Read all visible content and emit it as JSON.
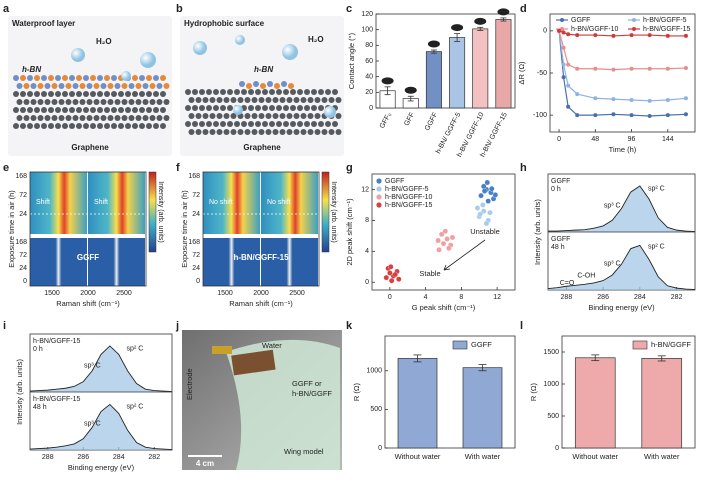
{
  "panel_labels": [
    "a",
    "b",
    "c",
    "d",
    "e",
    "f",
    "g",
    "h",
    "i",
    "j",
    "k",
    "l"
  ],
  "illustrations": [
    {
      "title": "Waterproof layer",
      "water": "H₂O",
      "layer": "h-BN",
      "substrate": "Graphene"
    },
    {
      "title": "Hydrophobic surface",
      "water": "H₂O",
      "layer": "h-BN",
      "substrate": "Graphene"
    }
  ],
  "raman": [
    {
      "ylabel": "Exposure time in air (h)",
      "xlabel": "Raman shift (cm⁻¹)",
      "colorbar_label": "Intensity (arb. units)",
      "xticks": [
        "1500",
        "2000",
        "2500"
      ],
      "yticks_top": [
        "168",
        "72",
        "24"
      ],
      "yticks_bottom": [
        "168",
        "72",
        "24",
        "0"
      ],
      "top_labels": [
        "Shift",
        "Shift"
      ],
      "sample": "GGFF"
    },
    {
      "ylabel": "Exposure time in air (h)",
      "xlabel": "Raman shift (cm⁻¹)",
      "colorbar_label": "Intensity (arb. units)",
      "xticks": [
        "1500",
        "2000",
        "2500"
      ],
      "yticks_top": [
        "168",
        "72",
        "24"
      ],
      "yticks_bottom": [
        "168",
        "72",
        "24",
        "0"
      ],
      "top_labels": [
        "No shift",
        "No shift"
      ],
      "sample": "h-BN/GGFF-15"
    }
  ],
  "photo": {
    "labels": [
      "Water",
      "Electrode",
      "GGFF or",
      "h-BN/GGFF",
      "Wing model"
    ],
    "scale_bar": "4 cm"
  },
  "chart_data": [
    {
      "type": "bar",
      "ylabel": "Contact angle (°)",
      "categories": [
        "GFF₀",
        "GFF",
        "GGFF",
        "h-BN/ GGFF-5",
        "h-BN/ GGFF-10",
        "h-BN/ GGFF-15"
      ],
      "values": [
        22,
        12,
        72,
        90,
        101,
        113
      ],
      "errors": [
        5,
        3,
        2,
        5,
        2,
        2
      ],
      "colors": [
        "#ffffff",
        "#ffffff",
        "#7290c3",
        "#a9c4e4",
        "#f3c1c1",
        "#e8a8a8"
      ],
      "ylim": [
        0,
        120
      ],
      "yticks": [
        0,
        20,
        40,
        60,
        80,
        100,
        120
      ]
    },
    {
      "type": "line",
      "xlabel": "Time (h)",
      "ylabel": "ΔR (Ω)",
      "x": [
        0,
        6,
        12,
        24,
        48,
        72,
        96,
        120,
        144,
        168
      ],
      "series": [
        {
          "name": "GGFF",
          "color": "#4a6fad",
          "values": [
            0,
            -55,
            -90,
            -100,
            -100,
            -99,
            -100,
            -101,
            -100,
            -99
          ]
        },
        {
          "name": "h-BN/GGFF-5",
          "color": "#8fb3e0",
          "values": [
            0,
            -40,
            -65,
            -75,
            -80,
            -81,
            -82,
            -83,
            -82,
            -80
          ]
        },
        {
          "name": "h-BN/GGFF-10",
          "color": "#e88c8c",
          "values": [
            0,
            -20,
            -40,
            -45,
            -45,
            -46,
            -45,
            -45,
            -45,
            -44
          ]
        },
        {
          "name": "h-BN/GGFF-15",
          "color": "#d03a3a",
          "values": [
            0,
            -2,
            -4,
            -5,
            -5,
            -6,
            -5,
            -5,
            -6,
            -6
          ]
        }
      ],
      "xlim": [
        -12,
        180
      ],
      "xticks": [
        0,
        48,
        96,
        144
      ],
      "ylim": [
        -120,
        20
      ],
      "yticks": [
        -100,
        -50,
        0
      ]
    },
    {
      "type": "scatter",
      "xlabel": "G peak shift (cm⁻¹)",
      "ylabel": "2D peak shift (cm⁻¹)",
      "annotations": [
        "Unstable",
        "Stable"
      ],
      "series": [
        {
          "name": "GGFF",
          "color": "#4a7fc8",
          "x": [
            10.2,
            10.8,
            11.3,
            11.6,
            10.5,
            11.0,
            11.8,
            10.9,
            11.4,
            10.6
          ],
          "values": [
            11.2,
            12.0,
            11.6,
            10.8,
            12.4,
            10.5,
            11.3,
            12.9,
            12.1,
            11.8
          ]
        },
        {
          "name": "h-BN/GGFF-5",
          "color": "#a8cbee",
          "x": [
            10,
            10.5,
            11,
            9.8,
            10.4,
            11.2,
            10.8,
            10.1
          ],
          "values": [
            8.5,
            9.2,
            8.0,
            9.6,
            10.0,
            9.0,
            7.6,
            8.8
          ]
        },
        {
          "name": "h-BN/GGFF-10",
          "color": "#f0a0a0",
          "x": [
            5.5,
            6.0,
            6.4,
            5.8,
            6.8,
            6.2,
            5.4,
            6.6,
            7.0
          ],
          "values": [
            4.2,
            5.0,
            5.6,
            6.2,
            4.8,
            6.6,
            5.4,
            4.4,
            5.8
          ]
        },
        {
          "name": "h-BN/GGFF-15",
          "color": "#d84040",
          "x": [
            -0.4,
            0,
            0.4,
            0.8,
            -0.2,
            0.2,
            0.6,
            1.0,
            0.1
          ],
          "values": [
            0.6,
            1.2,
            0.8,
            1.4,
            1.8,
            0.2,
            1.0,
            0.4,
            2.0
          ]
        }
      ],
      "xlim": [
        -2,
        14
      ],
      "xticks": [
        0,
        4,
        8,
        12
      ],
      "ylim": [
        -1,
        14
      ],
      "yticks": [
        0,
        4,
        8,
        12
      ]
    },
    {
      "type": "xps",
      "xlabel": "Binding energy (eV)",
      "ylabel": "Intensity (arb. units)",
      "x": [
        289,
        288.5,
        288,
        287.5,
        287,
        286.5,
        286,
        285.5,
        285,
        284.5,
        284,
        283.5,
        283,
        282.5,
        282,
        281.5,
        281
      ],
      "series": [
        {
          "name": "GGFF",
          "time": "0 h",
          "color": "#9ec3e6",
          "values": [
            0.02,
            0.02,
            0.03,
            0.04,
            0.05,
            0.08,
            0.13,
            0.25,
            0.5,
            0.85,
            0.98,
            0.7,
            0.3,
            0.1,
            0.04,
            0.02,
            0.01
          ],
          "annotations": [
            "sp³ C",
            "sp² C"
          ]
        },
        {
          "name": "GGFF",
          "time": "48 h",
          "color": "#9ec3e6",
          "values": [
            0.03,
            0.05,
            0.08,
            0.1,
            0.12,
            0.15,
            0.2,
            0.32,
            0.55,
            0.88,
            0.95,
            0.65,
            0.28,
            0.09,
            0.04,
            0.02,
            0.01
          ],
          "annotations": [
            "sp³ C",
            "sp² C",
            "C-OH",
            "C=O"
          ]
        }
      ],
      "xlim": [
        289,
        281
      ],
      "xticks": [
        288,
        286,
        284,
        282
      ],
      "ylim": [
        0,
        1.15
      ]
    },
    {
      "type": "xps",
      "xlabel": "Binding energy (eV)",
      "ylabel": "Intensity (arb. units)",
      "x": [
        289,
        288.5,
        288,
        287.5,
        287,
        286.5,
        286,
        285.5,
        285,
        284.5,
        284,
        283.5,
        283,
        282.5,
        282,
        281.5,
        281
      ],
      "series": [
        {
          "name": "h-BN/GGFF-15",
          "time": "0 h",
          "color": "#9ec3e6",
          "values": [
            0.02,
            0.03,
            0.04,
            0.06,
            0.08,
            0.12,
            0.22,
            0.45,
            0.8,
            0.98,
            0.8,
            0.45,
            0.18,
            0.06,
            0.03,
            0.02,
            0.01
          ],
          "annotations": [
            "sp³ C",
            "sp² C"
          ]
        },
        {
          "name": "h-BN/GGFF-15",
          "time": "48 h",
          "color": "#9ec3e6",
          "values": [
            0.02,
            0.03,
            0.04,
            0.06,
            0.09,
            0.13,
            0.24,
            0.48,
            0.82,
            0.97,
            0.78,
            0.42,
            0.16,
            0.06,
            0.03,
            0.02,
            0.01
          ],
          "annotations": [
            "sp³ C",
            "sp² C"
          ]
        }
      ],
      "xlim": [
        289,
        281
      ],
      "xticks": [
        288,
        286,
        284,
        282
      ],
      "ylim": [
        0,
        1.15
      ]
    },
    {
      "type": "groupbar",
      "ylabel": "R (Ω)",
      "categories": [
        "Without water",
        "With water"
      ],
      "series": [
        {
          "name": "GGFF",
          "color": "#8fa9d4",
          "values": [
            1160,
            1040
          ],
          "errors": [
            45,
            40
          ]
        }
      ],
      "ylim": [
        0,
        1450
      ],
      "yticks": [
        0,
        500,
        1000
      ]
    },
    {
      "type": "groupbar",
      "ylabel": "R (Ω)",
      "categories": [
        "Without water",
        "With water"
      ],
      "series": [
        {
          "name": "h-BN/GGFF",
          "color": "#eeaaaa",
          "values": [
            1410,
            1400
          ],
          "errors": [
            45,
            40
          ]
        }
      ],
      "ylim": [
        0,
        1750
      ],
      "yticks": [
        0,
        500,
        1000,
        1500
      ]
    }
  ]
}
